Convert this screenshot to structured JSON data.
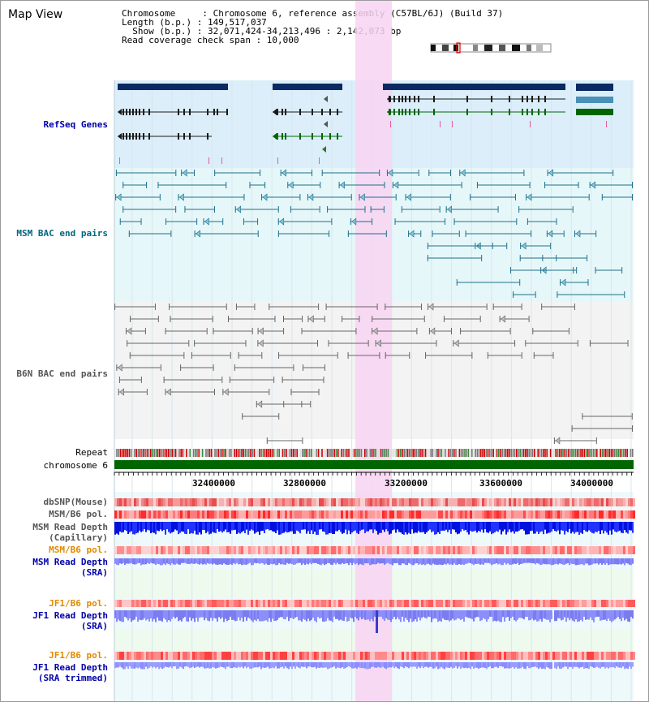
{
  "title": "Map View",
  "info": {
    "line1": "Chromosome     : Chromosome 6, reference assembly (C57BL/6J) (Build 37)",
    "line2": "Length (b.p.) : 149,517,037",
    "line3": "  Show (b.p.) : 32,071,424-34,213,496 : 2,142,073 bp",
    "line4": "Read coverage check span : 10,000"
  },
  "tracks": {
    "refseq": "RefSeq Genes",
    "msm_bac": "MSM BAC end pairs",
    "b6n_bac": "B6N BAC end pairs",
    "repeat": "Repeat",
    "chromosome": "chromosome 6",
    "dbsnp": "dbSNP(Mouse)",
    "msm_b6_pol": "MSM/B6 pol.",
    "msm_depth_cap_1": "MSM Read Depth",
    "msm_depth_cap_2": "(Capillary)",
    "msm_b6_pol2": "MSM/B6 pol.",
    "msm_depth_sra_1": "MSM Read Depth",
    "msm_depth_sra_2": "(SRA)",
    "jf1_pol": "JF1/B6 pol.",
    "jf1_depth_1": "JF1 Read Depth",
    "jf1_depth_2": "(SRA)",
    "jf1_pol2": "JF1/B6 pol.",
    "jf1_trim_1": "JF1 Read Depth",
    "jf1_trim_2": "(SRA trimmed)"
  },
  "axis": {
    "ticks": [
      "32400000",
      "32800000",
      "33200000",
      "33600000",
      "34000000"
    ]
  },
  "colors": {
    "refseq_bg": "#dbeefa",
    "msm_bg": "#e6f7f9",
    "b6n_bg": "#f3f3f3",
    "highlight": "#f8d4f2",
    "gene_dark": "#0b2a63",
    "gene_green": "#006600",
    "msm_line": "#1f6f8b",
    "b6n_line": "#666666",
    "chrom": "#006600",
    "refseq_label": "#0000aa",
    "msm_label": "#006680",
    "b6n_label": "#555555",
    "orange_label": "#e08a00",
    "blue_label": "#0000aa"
  }
}
